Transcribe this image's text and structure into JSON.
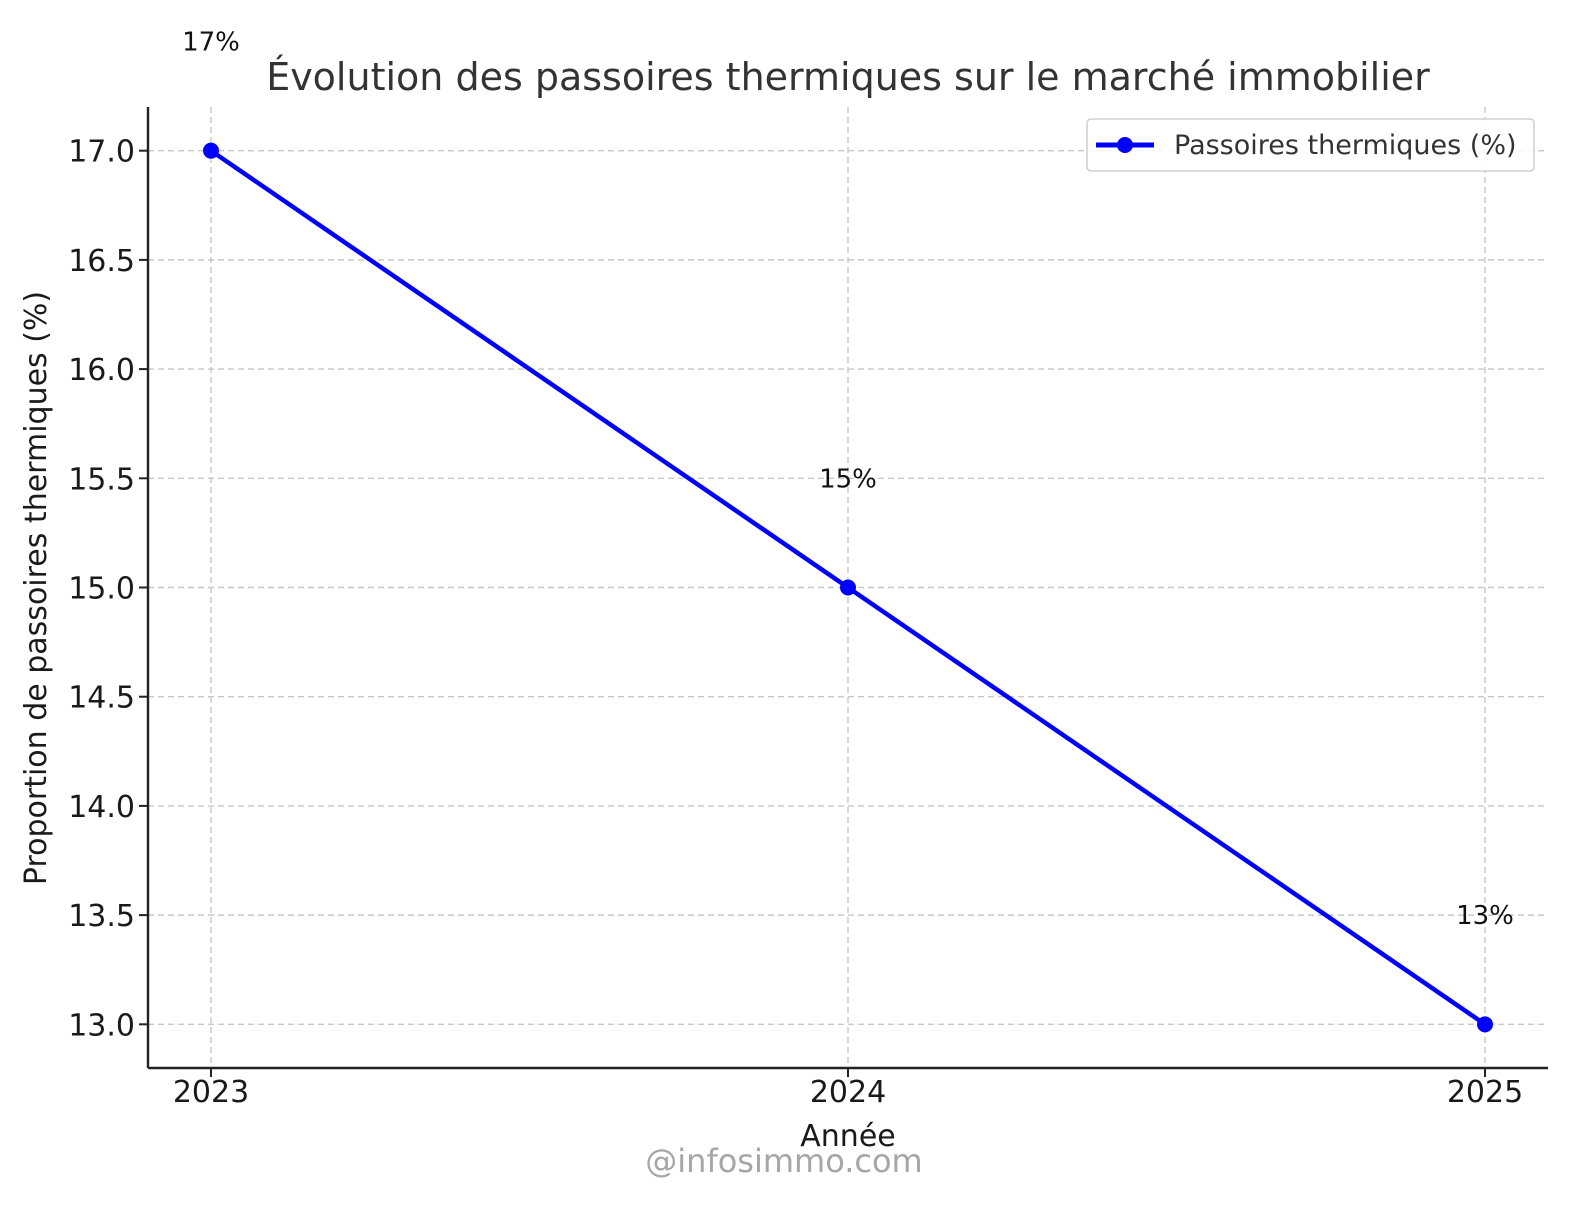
{
  "chart_data": {
    "type": "line",
    "title": "Évolution des passoires thermiques sur le marché immobilier",
    "xlabel": "Année",
    "ylabel": "Proportion de passoires thermiques (%)",
    "categories": [
      "2023",
      "2024",
      "2025"
    ],
    "series": [
      {
        "name": "Passoires thermiques (%)",
        "color": "#0000ff",
        "marker": "circle",
        "values": [
          17,
          15,
          13
        ],
        "labels": [
          "17%",
          "15%",
          "13%"
        ]
      }
    ],
    "ylim": [
      12.8,
      17.2
    ],
    "yticks": [
      "13.0",
      "13.5",
      "14.0",
      "14.5",
      "15.0",
      "15.5",
      "16.0",
      "16.5",
      "17.0"
    ],
    "grid": true,
    "legend": "top-right"
  },
  "watermark": "@infosimmo.com"
}
